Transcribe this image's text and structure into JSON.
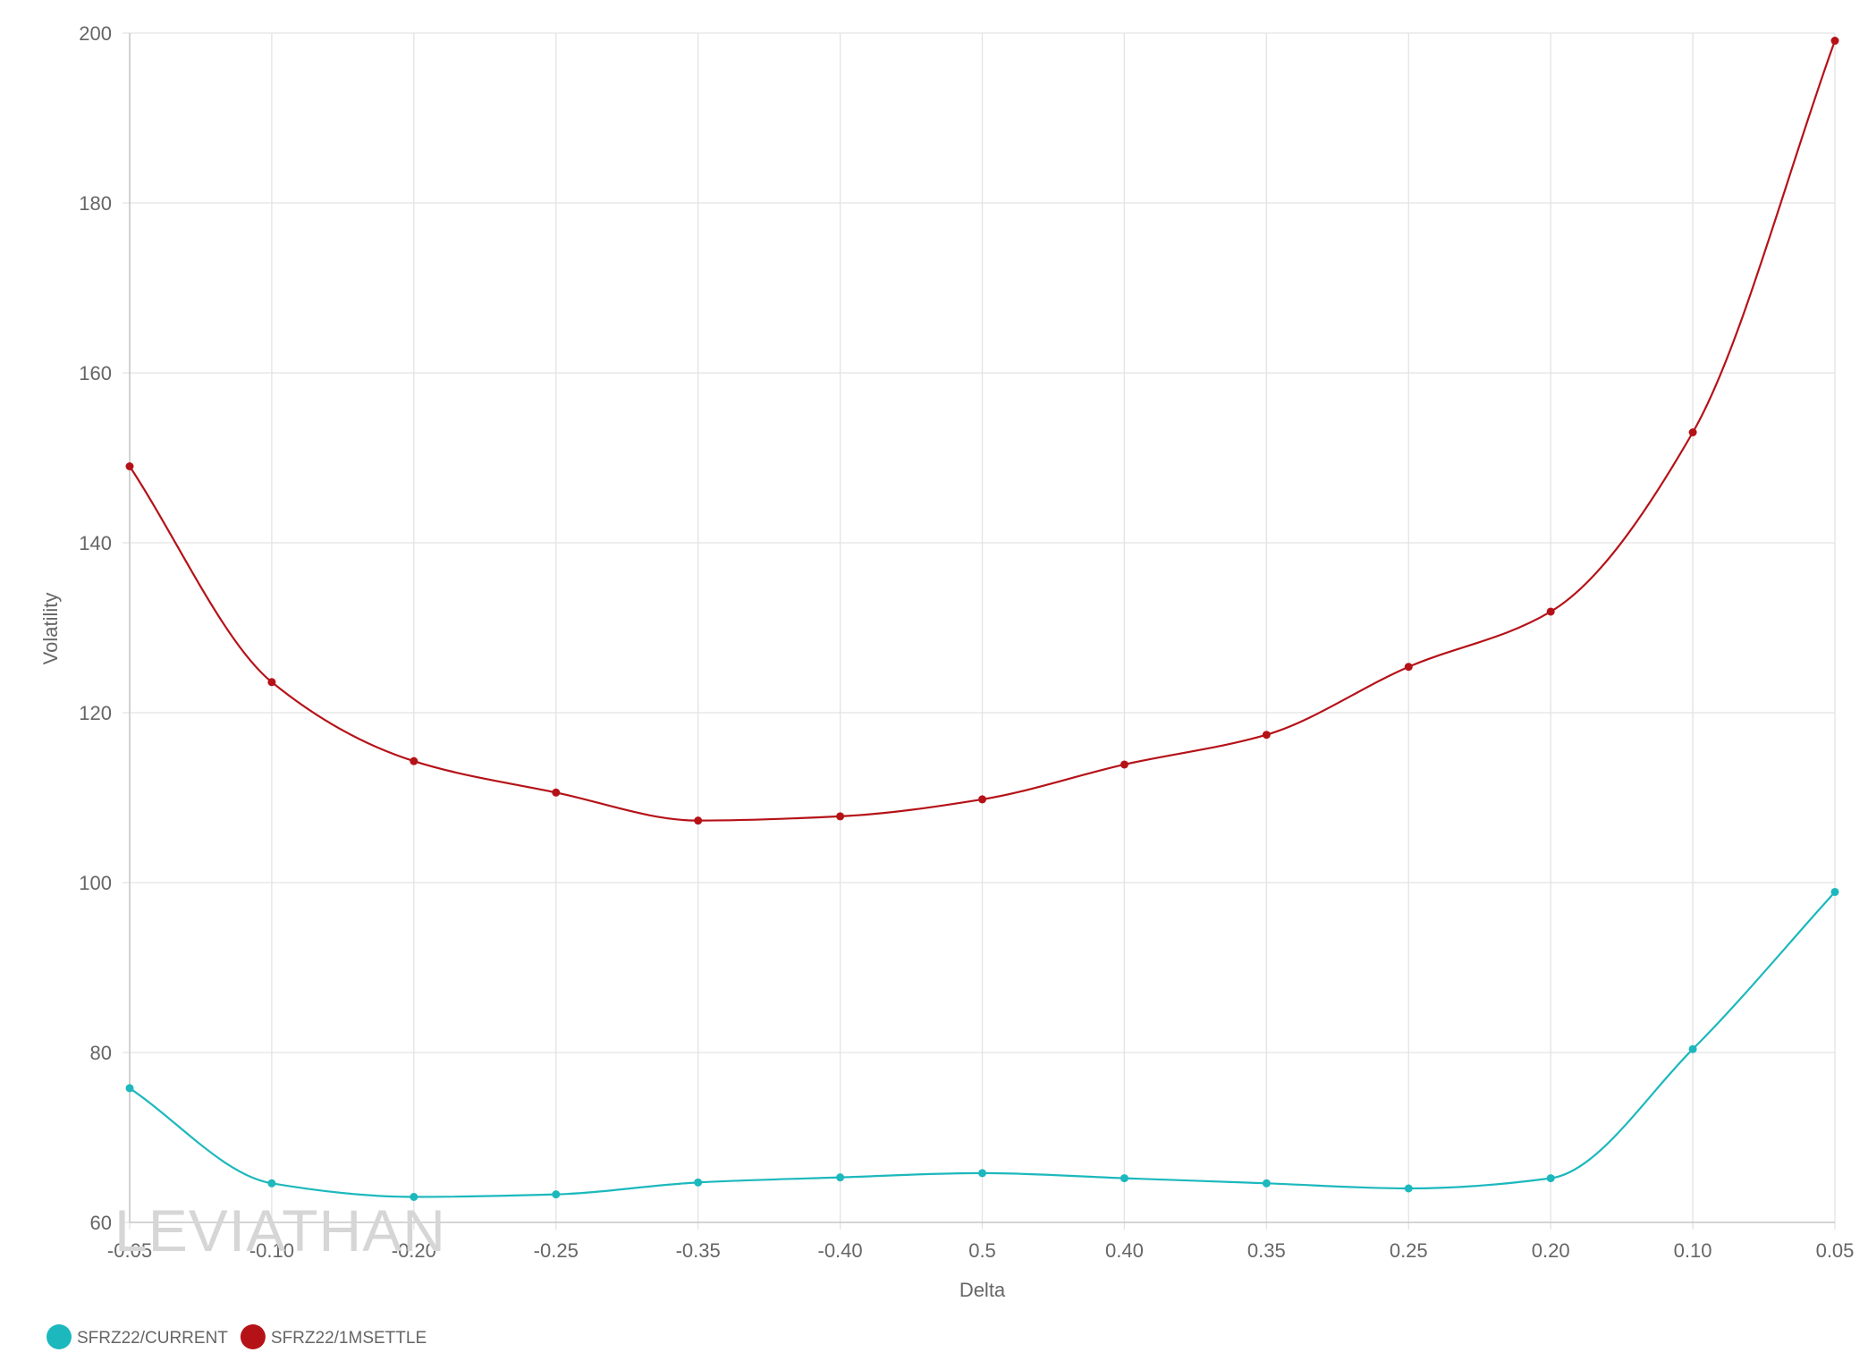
{
  "chart_data": {
    "type": "line",
    "xlabel": "Delta",
    "ylabel": "Volatility",
    "categories": [
      "-0.05",
      "-0.10",
      "-0.20",
      "-0.25",
      "-0.35",
      "-0.40",
      "0.5",
      "0.40",
      "0.35",
      "0.25",
      "0.20",
      "0.10",
      "0.05"
    ],
    "ylim": [
      60,
      200
    ],
    "yticks": [
      60,
      80,
      100,
      120,
      140,
      160,
      180,
      200
    ],
    "grid": true,
    "legend_position": "bottom-left",
    "watermark": "LEVIATHAN",
    "series": [
      {
        "name": "SFRZ22/CURRENT",
        "color": "#1cb8bd",
        "values": [
          75.8,
          64.6,
          63.0,
          63.3,
          64.7,
          65.3,
          65.8,
          65.2,
          64.6,
          64.0,
          65.2,
          80.4,
          98.9
        ]
      },
      {
        "name": "SFRZ22/1MSETTLE",
        "color": "#b51218",
        "values": [
          149.0,
          123.6,
          114.3,
          110.6,
          107.3,
          107.8,
          109.8,
          113.9,
          117.4,
          125.4,
          131.9,
          153.0,
          199.1
        ]
      }
    ]
  }
}
